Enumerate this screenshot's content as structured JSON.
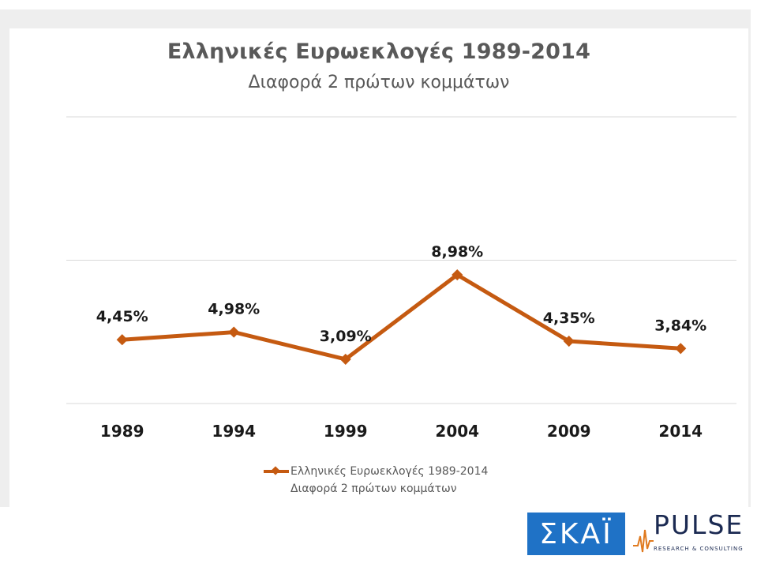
{
  "chart_data": {
    "type": "line",
    "title": "Ελληνικές Ευρωεκλογές 1989-2014",
    "subtitle": "Διαφορά 2 πρώτων κομμάτων",
    "categories": [
      "1989",
      "1994",
      "1999",
      "2004",
      "2009",
      "2014"
    ],
    "series": [
      {
        "name": "Ελληνικές Ευρωεκλογές 1989-2014\nΔιαφορά 2 πρώτων κομμάτων",
        "values": [
          4.45,
          4.98,
          3.09,
          8.98,
          4.35,
          3.84
        ],
        "labels": [
          "4,45%",
          "4,98%",
          "3,09%",
          "8,98%",
          "4,35%",
          "3,84%"
        ],
        "color": "#c55a11"
      }
    ],
    "ylim": [
      0,
      20
    ],
    "grid": true,
    "legend": "bottom"
  },
  "logos": {
    "skai": "ΣΚΑΪ",
    "pulse": "PULSE",
    "pulse_sub": "RESEARCH & CONSULTING"
  }
}
